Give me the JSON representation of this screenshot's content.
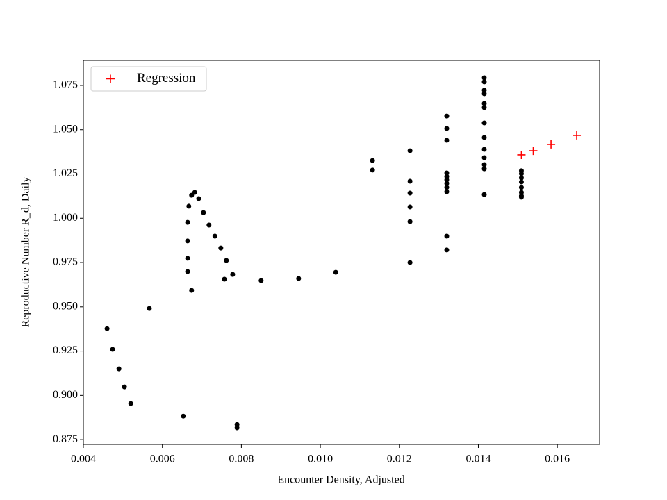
{
  "chart_data": {
    "type": "scatter",
    "xlabel": "Encounter Density, Adjusted",
    "ylabel": "Reproductive Number R_d, Daily",
    "xlim": [
      0.004,
      0.01707
    ],
    "ylim": [
      0.8723,
      1.0891
    ],
    "xticks": [
      0.004,
      0.006,
      0.008,
      {
        "value": 0.01,
        "label": "0.010"
      },
      0.012,
      0.014,
      0.016
    ],
    "yticks": [
      0.875,
      {
        "value": 0.9,
        "label": "0.900"
      },
      0.925,
      {
        "value": 0.95,
        "label": "0.950"
      },
      0.975,
      {
        "value": 1,
        "label": "1.000"
      },
      1.025,
      {
        "value": 1.05,
        "label": "1.050"
      },
      1.075
    ],
    "legend": "upper left",
    "series": [
      {
        "color": "#000000",
        "marker": "o",
        "x": [
          0.0046,
          0.00474,
          0.0049,
          0.00504,
          0.0052,
          0.00567,
          0.00653,
          0.00789,
          0.00789,
          0.00664,
          0.00664,
          0.00664,
          0.00664,
          0.00667,
          0.00674,
          0.00682,
          0.00674,
          0.00692,
          0.00704,
          0.00718,
          0.00733,
          0.00748,
          0.00762,
          0.00757,
          0.00778,
          0.0085,
          0.00945,
          0.01039,
          0.01132,
          0.01132,
          0.01227,
          0.01227,
          0.01227,
          0.01227,
          0.01227,
          0.01227,
          0.0132,
          0.0132,
          0.0132,
          0.0132,
          0.0132,
          0.0132,
          0.0132,
          0.0132,
          0.0132,
          0.0132,
          0.0132,
          0.01415,
          0.01415,
          0.01415,
          0.01415,
          0.01415,
          0.01415,
          0.01415,
          0.01415,
          0.01415,
          0.01415,
          0.01415,
          0.01415,
          0.01415,
          0.01509,
          0.01509,
          0.01509,
          0.01509,
          0.01509,
          0.01509,
          0.01509,
          0.01509
        ],
        "values": [
          0.9377,
          0.926,
          0.915,
          0.9048,
          0.8954,
          0.9491,
          0.8883,
          0.8836,
          0.8817,
          0.9977,
          0.9872,
          0.9774,
          0.9699,
          1.0068,
          1.013,
          1.0146,
          0.9593,
          1.0111,
          1.0032,
          0.9962,
          0.9899,
          0.9832,
          0.9762,
          0.9656,
          0.9683,
          0.9648,
          0.966,
          0.9695,
          1.0326,
          1.0272,
          1.0381,
          1.0209,
          1.0142,
          1.0064,
          0.9981,
          0.975,
          1.0577,
          1.0507,
          1.044,
          1.0256,
          1.0236,
          1.0217,
          1.0197,
          1.0174,
          1.015,
          0.9899,
          0.9821,
          1.0793,
          1.077,
          1.0723,
          1.0703,
          1.0648,
          1.0625,
          1.0538,
          1.0456,
          1.0389,
          1.0342,
          1.0303,
          1.0279,
          1.0134,
          1.0268,
          1.0252,
          1.0228,
          1.0205,
          1.0174,
          1.0146,
          1.0126,
          1.0119
        ]
      },
      {
        "name": "Regression",
        "color": "#ff0000",
        "marker": "+",
        "x": [
          0.01509,
          0.01539,
          0.01584,
          0.01649
        ],
        "values": [
          1.0358,
          1.0381,
          1.0417,
          1.0468
        ]
      }
    ]
  }
}
